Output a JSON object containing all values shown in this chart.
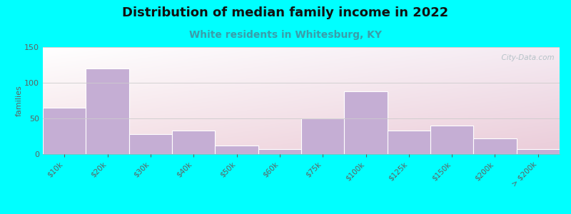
{
  "title": "Distribution of median family income in 2022",
  "subtitle": "White residents in Whitesburg, KY",
  "categories": [
    "$10k",
    "$20k",
    "$30k",
    "$40k",
    "$50k",
    "$60k",
    "$75k",
    "$100k",
    "$125k",
    "$150k",
    "$200k",
    "> $200k"
  ],
  "values": [
    65,
    120,
    28,
    33,
    12,
    7,
    50,
    88,
    33,
    40,
    22,
    7
  ],
  "bar_color": "#c5aed4",
  "bar_edge_color": "#c5aed4",
  "background_outer": "#00ffff",
  "ylabel": "families",
  "ylim": [
    0,
    150
  ],
  "yticks": [
    0,
    50,
    100,
    150
  ],
  "title_fontsize": 13,
  "subtitle_fontsize": 10,
  "subtitle_color": "#3a9eaa",
  "watermark": "  City-Data.com",
  "watermark_color": "#aabbc0",
  "tick_color": "#606060",
  "tick_fontsize": 7.5,
  "ylabel_fontsize": 8,
  "grid_color": "#cccccc"
}
